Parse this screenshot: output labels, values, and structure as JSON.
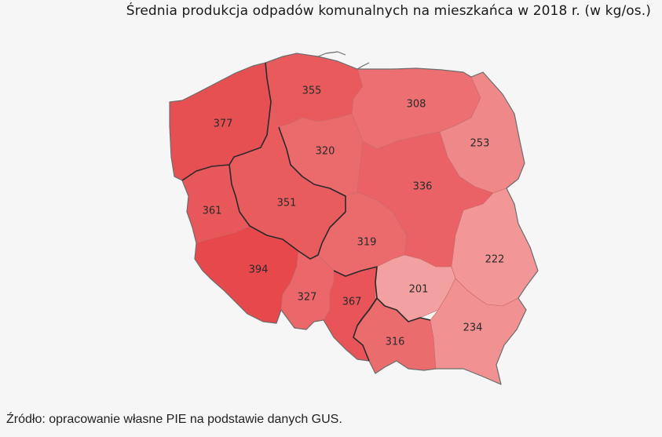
{
  "title": "Średnia produkcja odpadów komunalnych na mieszkańca w 2018 r. (w kg/os.)",
  "source": "Źródło: opracowanie własne PIE na podstawie danych GUS.",
  "colors": {
    "background": "#f6f6f6",
    "scale_low": "#f3a0a0",
    "scale_high": "#e6484b"
  },
  "map_data": {
    "unit": "kg/os.",
    "regions": [
      {
        "id": "zachodniopomorskie",
        "value": 377
      },
      {
        "id": "pomorskie",
        "value": 355
      },
      {
        "id": "warminsko-mazurskie",
        "value": 308
      },
      {
        "id": "podlaskie",
        "value": 253
      },
      {
        "id": "kujawsko-pomorskie",
        "value": 320
      },
      {
        "id": "lubuskie",
        "value": 361
      },
      {
        "id": "wielkopolskie",
        "value": 351
      },
      {
        "id": "mazowieckie",
        "value": 336
      },
      {
        "id": "lodzkie",
        "value": 319
      },
      {
        "id": "lubelskie",
        "value": 222
      },
      {
        "id": "dolnoslaskie",
        "value": 394
      },
      {
        "id": "opolskie",
        "value": 327
      },
      {
        "id": "slaskie",
        "value": 367
      },
      {
        "id": "swietokrzyskie",
        "value": 201
      },
      {
        "id": "malopolskie",
        "value": 316
      },
      {
        "id": "podkarpackie",
        "value": 234
      }
    ]
  }
}
